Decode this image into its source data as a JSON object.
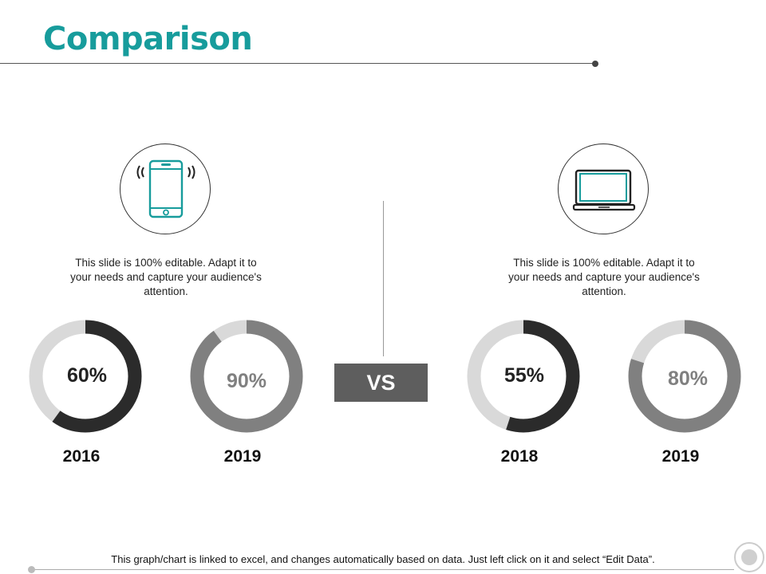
{
  "slide": {
    "title": "Comparison",
    "vs_label": "VS",
    "footer": "This graph/chart is linked to excel, and changes automatically based on data. Just left click on it and select “Edit Data”."
  },
  "panels": [
    {
      "icon": "smartphone-icon",
      "description": "This slide is 100% editable. Adapt it to your needs and capture your audience's attention."
    },
    {
      "icon": "laptop-icon",
      "description": "This slide is 100% editable. Adapt it to your needs and capture your audience's attention."
    }
  ],
  "colors": {
    "title": "#179c9c",
    "icon_stroke": "#179c9c",
    "dark_ring": "#2b2b2b",
    "mid_ring": "#808080",
    "track": "#d9d9d9",
    "vs_box": "#5e5e5e"
  },
  "chart_data": [
    {
      "type": "pie",
      "category": "2016",
      "value": 60,
      "label": "60%"
    },
    {
      "type": "pie",
      "category": "2019",
      "value": 90,
      "label": "90%"
    },
    {
      "type": "pie",
      "category": "2018",
      "value": 55,
      "label": "55%"
    },
    {
      "type": "pie",
      "category": "2019",
      "value": 80,
      "label": "80%"
    }
  ]
}
